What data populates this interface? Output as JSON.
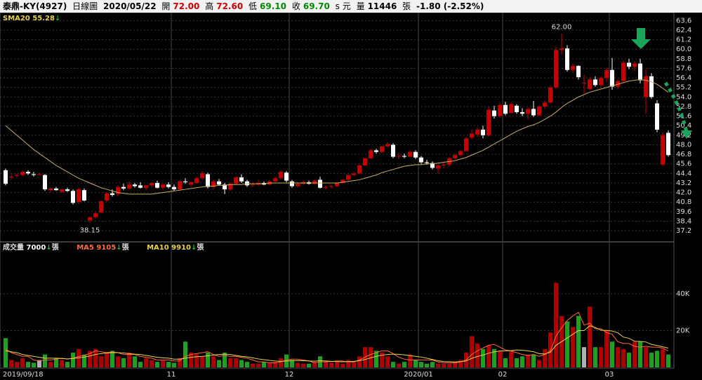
{
  "header": {
    "name": "泰鼎-KY(4927)",
    "period": "日線圖",
    "date": "2020/05/22",
    "open_label": "開",
    "open": "72.00",
    "high_label": "高",
    "high": "72.60",
    "low_label": "低",
    "low": "69.10",
    "close_label": "收",
    "close": "69.70",
    "price_unit": "s 元",
    "volume_label": "量",
    "volume": "11446",
    "volume_unit": "張",
    "change": "-1.80 (-2.52%)"
  },
  "chart_data": [
    {
      "type": "candlestick",
      "up_color": "#c80000",
      "down_color": "#ffffff",
      "ylim": [
        35.8,
        64.6
      ],
      "yticks": [
        63.6,
        62.4,
        61.2,
        {
          "value": 60.0,
          "label": "60.0"
        },
        58.8,
        57.6,
        56.4,
        55.2,
        {
          "value": 54.0,
          "label": "54.0"
        },
        52.8,
        51.6,
        50.4,
        49.2,
        {
          "value": 48.0,
          "label": "48.0"
        },
        46.8,
        45.6,
        44.4,
        43.2,
        {
          "value": 42.0,
          "label": "42.0"
        },
        40.8,
        39.6,
        38.4,
        37.2
      ],
      "grid": true,
      "annotations": [
        "62.00",
        "38.15"
      ],
      "open": [
        44.8,
        43.9,
        44.1,
        44.2,
        44.6,
        44.3,
        44.3,
        44.2,
        42.3,
        42.5,
        42.1,
        42.4,
        42.2,
        40.8,
        42.3,
        38.5,
        38.9,
        39.5,
        41.0,
        41.9,
        41.8,
        42.7,
        42.5,
        43.0,
        42.9,
        42.6,
        42.9,
        43.2,
        42.6,
        43.0,
        42.7,
        42.4,
        43.4,
        43.0,
        43.2,
        43.8,
        44.3,
        42.7,
        43.4,
        43.0,
        42.4,
        43.1,
        43.9,
        43.4,
        42.9,
        43.0,
        43.2,
        43.0,
        43.4,
        43.8,
        44.5,
        43.4,
        42.8,
        43.1,
        43.3,
        43.1,
        43.6,
        42.6,
        42.7,
        42.8,
        43.2,
        43.6,
        44.2,
        44.4,
        45.4,
        46.3,
        47.3,
        47.1,
        47.8,
        48.0,
        46.5,
        46.6,
        46.5,
        47.1,
        46.4,
        45.8,
        45.7,
        45.0,
        45.4,
        45.5,
        46.3,
        46.7,
        47.2,
        48.9,
        49.3,
        49.9,
        49.2,
        52.3,
        51.6,
        53.0,
        52.0,
        52.9,
        52.1,
        51.9,
        52.5,
        51.7,
        52.8,
        53.3,
        55.2,
        59.9,
        60.1,
        57.4,
        57.9,
        55.8,
        55.0,
        56.2,
        55.5,
        56.4,
        57.4,
        55.3,
        56.0,
        58.3,
        57.8,
        58.2,
        54.0,
        56.6,
        53.2,
        45.5,
        49.5
      ],
      "high": [
        45.0,
        44.3,
        44.4,
        44.8,
        44.8,
        44.6,
        44.5,
        44.3,
        42.6,
        42.7,
        42.5,
        42.6,
        42.4,
        42.6,
        42.5,
        39.0,
        39.6,
        41.0,
        42.0,
        42.4,
        42.9,
        43.1,
        43.4,
        43.2,
        43.3,
        43.0,
        43.3,
        43.5,
        43.1,
        43.3,
        43.0,
        43.5,
        43.8,
        43.4,
        44.0,
        44.7,
        44.5,
        43.6,
        43.7,
        43.2,
        43.3,
        44.0,
        44.3,
        43.6,
        43.3,
        43.6,
        43.4,
        43.5,
        44.0,
        44.8,
        44.7,
        43.6,
        43.2,
        43.5,
        43.5,
        43.6,
        44.0,
        42.9,
        43.0,
        43.3,
        43.7,
        44.3,
        44.6,
        45.6,
        46.4,
        47.5,
        47.5,
        47.9,
        48.3,
        48.2,
        47.0,
        46.9,
        47.3,
        47.3,
        46.6,
        46.1,
        45.9,
        45.6,
        45.8,
        46.5,
        46.9,
        47.4,
        49.0,
        49.9,
        50.2,
        50.4,
        52.8,
        52.9,
        53.3,
        53.4,
        53.3,
        53.1,
        52.6,
        52.7,
        53.5,
        53.0,
        53.6,
        55.4,
        60.3,
        62.0,
        60.5,
        58.2,
        58.0,
        56.8,
        56.5,
        56.6,
        56.6,
        57.7,
        58.9,
        56.2,
        58.6,
        58.8,
        58.5,
        58.8,
        57.5,
        57.0,
        53.6,
        49.6,
        49.8
      ],
      "low": [
        42.9,
        43.6,
        43.9,
        44.0,
        44.2,
        44.0,
        44.1,
        42.2,
        42.0,
        42.2,
        41.9,
        42.1,
        40.5,
        40.6,
        40.9,
        38.15,
        38.7,
        39.4,
        40.8,
        41.5,
        41.6,
        42.3,
        42.4,
        42.6,
        42.5,
        42.3,
        42.6,
        42.5,
        42.4,
        42.5,
        42.2,
        42.3,
        43.1,
        42.7,
        43.1,
        43.6,
        42.5,
        42.4,
        42.9,
        41.8,
        42.2,
        43.0,
        43.2,
        42.7,
        42.7,
        42.8,
        42.9,
        42.9,
        43.3,
        43.6,
        43.3,
        42.6,
        42.6,
        42.9,
        43.0,
        43.0,
        42.5,
        42.4,
        42.5,
        42.7,
        43.1,
        43.5,
        44.0,
        44.3,
        45.3,
        46.2,
        46.9,
        47.0,
        47.7,
        46.3,
        46.2,
        46.3,
        46.4,
        46.2,
        45.6,
        45.5,
        44.9,
        44.3,
        45.0,
        45.3,
        46.1,
        46.5,
        47.1,
        48.7,
        49.0,
        48.8,
        49.0,
        51.3,
        51.4,
        51.7,
        51.9,
        51.9,
        51.6,
        51.2,
        51.5,
        51.6,
        52.5,
        53.2,
        55.0,
        59.3,
        57.2,
        57.0,
        56.2,
        54.3,
        54.8,
        55.3,
        55.1,
        55.8,
        54.9,
        55.0,
        55.8,
        57.5,
        57.3,
        55.7,
        51.8,
        53.8,
        49.6,
        45.3,
        46.5
      ],
      "close": [
        43.1,
        44.0,
        44.2,
        44.6,
        44.4,
        44.2,
        44.3,
        42.4,
        42.5,
        42.3,
        42.4,
        42.2,
        40.7,
        42.4,
        41.0,
        38.9,
        39.4,
        40.9,
        41.9,
        41.7,
        42.7,
        42.5,
        43.0,
        42.8,
        42.6,
        42.9,
        43.2,
        42.6,
        43.0,
        42.7,
        42.4,
        43.4,
        43.3,
        43.3,
        43.8,
        44.4,
        42.7,
        43.4,
        43.0,
        42.4,
        43.1,
        43.9,
        43.4,
        42.9,
        43.0,
        43.2,
        43.0,
        43.4,
        43.8,
        44.6,
        43.5,
        42.8,
        43.1,
        43.3,
        43.1,
        43.5,
        42.6,
        42.7,
        42.8,
        43.2,
        43.6,
        44.2,
        44.4,
        45.4,
        46.3,
        47.3,
        47.1,
        47.8,
        48.1,
        46.5,
        46.6,
        46.5,
        47.1,
        46.4,
        45.8,
        45.7,
        45.1,
        45.4,
        45.5,
        46.3,
        46.7,
        47.2,
        48.8,
        49.4,
        49.9,
        49.2,
        52.4,
        51.6,
        53.0,
        51.9,
        53.1,
        52.1,
        51.9,
        52.5,
        51.7,
        52.8,
        53.3,
        55.2,
        59.9,
        60.1,
        57.4,
        57.9,
        56.5,
        55.8,
        56.2,
        55.5,
        56.4,
        57.4,
        55.3,
        56.0,
        58.3,
        57.8,
        58.2,
        56.1,
        56.6,
        54.0,
        49.9,
        49.2,
        46.7
      ],
      "sma": {
        "name": "SMA20",
        "value": 55.28,
        "color": "#c8b060",
        "values": [
          50.4,
          49.8,
          49.2,
          48.6,
          48.0,
          47.4,
          46.9,
          46.4,
          45.9,
          45.4,
          45.0,
          44.6,
          44.2,
          43.8,
          43.5,
          43.2,
          42.9,
          42.6,
          42.4,
          42.2,
          42.0,
          41.9,
          41.8,
          41.8,
          41.8,
          41.8,
          41.8,
          41.9,
          42.0,
          42.1,
          42.2,
          42.3,
          42.4,
          42.5,
          42.6,
          42.7,
          42.8,
          42.8,
          42.9,
          42.9,
          43.0,
          43.0,
          43.0,
          43.1,
          43.1,
          43.1,
          43.1,
          43.2,
          43.2,
          43.2,
          43.2,
          43.2,
          43.2,
          43.2,
          43.2,
          43.2,
          43.2,
          43.2,
          43.2,
          43.2,
          43.3,
          43.4,
          43.5,
          43.6,
          43.8,
          44.0,
          44.2,
          44.5,
          44.7,
          44.9,
          45.1,
          45.3,
          45.4,
          45.5,
          45.5,
          45.6,
          45.6,
          45.7,
          45.8,
          45.9,
          46.0,
          46.2,
          46.4,
          46.7,
          47.0,
          47.3,
          47.7,
          48.1,
          48.5,
          48.9,
          49.3,
          49.7,
          50.0,
          50.3,
          50.5,
          50.8,
          51.2,
          51.6,
          52.1,
          52.7,
          53.2,
          53.6,
          54.0,
          54.3,
          54.6,
          54.8,
          55.0,
          55.2,
          55.4,
          55.6,
          55.8,
          56.0,
          56.1,
          56.2,
          56.1,
          55.9,
          55.6,
          55.1,
          54.6
        ]
      }
    },
    {
      "type": "bar",
      "up_color": "#b00000",
      "down_color": "#1fa01f",
      "flat_color": "#b0b0b0",
      "ylim": [
        0,
        61000
      ],
      "yticks": [
        {
          "value": 20000,
          "label": "20K"
        },
        {
          "value": 40000,
          "label": "40K"
        }
      ],
      "volume_name": "成交量",
      "volume_value": 7000,
      "unit": "張",
      "categories": [
        "2019/09/18",
        null,
        null,
        null,
        null,
        null,
        null,
        null,
        null,
        null,
        null,
        null,
        null,
        null,
        null,
        null,
        null,
        null,
        null,
        null,
        null,
        null,
        null,
        null,
        null,
        null,
        null,
        null,
        null,
        null,
        "11",
        null,
        null,
        null,
        null,
        null,
        null,
        null,
        null,
        null,
        null,
        null,
        null,
        null,
        null,
        null,
        null,
        null,
        null,
        null,
        null,
        "12",
        null,
        null,
        null,
        null,
        null,
        null,
        null,
        null,
        null,
        null,
        null,
        null,
        null,
        null,
        null,
        null,
        null,
        null,
        null,
        null,
        null,
        null,
        "2020/01",
        null,
        null,
        null,
        null,
        null,
        null,
        null,
        null,
        null,
        null,
        null,
        null,
        null,
        null,
        "02",
        null,
        null,
        null,
        null,
        null,
        null,
        null,
        null,
        null,
        null,
        null,
        null,
        null,
        null,
        null,
        null,
        null,
        null,
        "03",
        null,
        null,
        null,
        null,
        null,
        null,
        null,
        null,
        null,
        null
      ],
      "values": [
        15900,
        4000,
        3000,
        5000,
        3000,
        2500,
        4000,
        7000,
        3000,
        5000,
        4000,
        3000,
        8000,
        10000,
        7000,
        9000,
        10000,
        6000,
        8000,
        9000,
        6000,
        5000,
        8000,
        6000,
        3000,
        5000,
        4000,
        3000,
        4000,
        3000,
        2500,
        5000,
        14000,
        8000,
        7000,
        6000,
        8000,
        6000,
        4000,
        8000,
        5000,
        5000,
        4000,
        3000,
        2000,
        2000,
        3000,
        2500,
        3000,
        5000,
        7000,
        4000,
        2500,
        2000,
        2000,
        3000,
        6000,
        3000,
        2500,
        3000,
        2000,
        4000,
        3000,
        6000,
        11000,
        11000,
        9000,
        8000,
        6000,
        3000,
        2000,
        3000,
        7000,
        4000,
        3000,
        2000,
        3000,
        2000,
        2000,
        2000,
        3000,
        4000,
        8000,
        17000,
        13000,
        10000,
        12000,
        10000,
        9000,
        5000,
        9000,
        5000,
        6000,
        7000,
        7000,
        4000,
        10000,
        19000,
        46000,
        28000,
        25000,
        22000,
        28000,
        11000,
        33000,
        11000,
        11000,
        20000,
        14000,
        11000,
        10000,
        8000,
        14000,
        14000,
        11000,
        8000,
        9000,
        10000,
        7000
      ],
      "lines": [
        {
          "name": "MA5",
          "value": 9105,
          "color": "#ff6a3d",
          "values": [
            10000,
            8000,
            7000,
            6000,
            6000,
            4000,
            3500,
            4000,
            4000,
            4500,
            5000,
            4500,
            5000,
            6000,
            6500,
            7500,
            9000,
            8500,
            8000,
            8500,
            8000,
            7000,
            7000,
            7000,
            6000,
            5500,
            5000,
            4000,
            4000,
            4000,
            3500,
            3500,
            6000,
            7000,
            7500,
            8000,
            8500,
            7000,
            6000,
            6500,
            6000,
            6000,
            5500,
            5000,
            4000,
            3000,
            3000,
            2500,
            2500,
            3000,
            4000,
            4500,
            4500,
            4000,
            3500,
            2500,
            3000,
            3000,
            3200,
            3500,
            3500,
            3000,
            3000,
            4000,
            5500,
            7000,
            8000,
            9000,
            9000,
            7500,
            5500,
            4500,
            4000,
            4000,
            4000,
            4000,
            4000,
            3000,
            2500,
            2500,
            2500,
            3000,
            4000,
            7000,
            9000,
            10500,
            12000,
            12500,
            11000,
            9500,
            9000,
            8000,
            7000,
            6500,
            7000,
            6000,
            7000,
            9000,
            17000,
            21500,
            25500,
            28000,
            30000,
            23000,
            24000,
            21000,
            21000,
            19000,
            18000,
            14000,
            13000,
            13000,
            11500,
            11000,
            11500,
            11000,
            11000,
            10500,
            9000
          ]
        },
        {
          "name": "MA10",
          "value": 9910,
          "color": "#e8d44a",
          "values": [
            9000,
            8500,
            8000,
            7000,
            6500,
            6000,
            5500,
            5000,
            5000,
            5000,
            4800,
            4600,
            4800,
            5200,
            5600,
            6200,
            7000,
            7500,
            7800,
            8000,
            8000,
            7800,
            7500,
            7200,
            7000,
            6500,
            6000,
            5500,
            5200,
            5000,
            4500,
            4500,
            5000,
            5500,
            5800,
            6000,
            6300,
            6700,
            7000,
            7200,
            7000,
            6500,
            6000,
            5700,
            5200,
            4600,
            4200,
            3800,
            3500,
            3300,
            3500,
            3600,
            3700,
            3600,
            3500,
            3400,
            3600,
            3500,
            3300,
            3200,
            3000,
            3200,
            3300,
            3600,
            4300,
            5200,
            6000,
            6600,
            7000,
            7200,
            7100,
            6800,
            6400,
            6000,
            5600,
            5000,
            4300,
            3600,
            3200,
            3100,
            3000,
            3100,
            3500,
            4900,
            5900,
            6700,
            7700,
            8400,
            8900,
            9000,
            9100,
            9500,
            9300,
            9000,
            8500,
            7500,
            7300,
            8200,
            12000,
            14000,
            16000,
            18000,
            20000,
            20000,
            22600,
            21700,
            20200,
            20100,
            19800,
            18800,
            16500,
            15800,
            14200,
            14100,
            13800,
            12500,
            11900,
            11200,
            10500
          ]
        }
      ]
    }
  ]
}
